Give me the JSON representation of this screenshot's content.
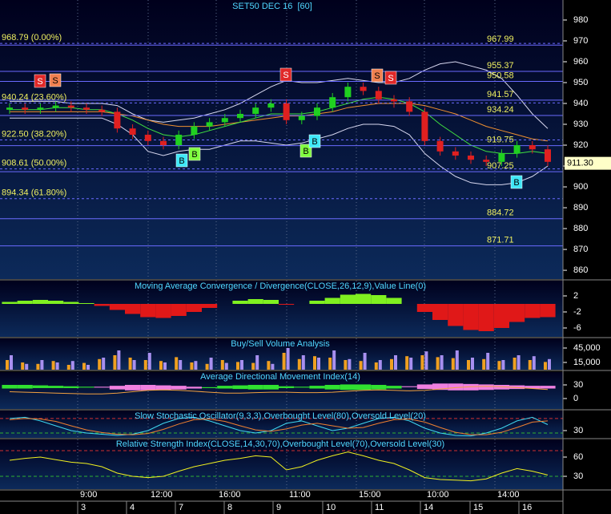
{
  "chart_data": [
    {
      "type": "candlestick",
      "title": "SET50 DEC 16  [60]",
      "open": [
        937,
        938,
        937,
        938,
        939,
        938,
        937,
        936,
        928,
        925,
        922,
        920,
        925,
        929,
        931,
        933,
        935,
        938,
        940,
        932,
        934,
        938,
        943,
        948,
        946,
        942,
        941,
        936,
        922,
        917,
        915,
        913,
        912,
        916,
        920,
        918
      ],
      "high": [
        940,
        940,
        940,
        941,
        941,
        940,
        939,
        938,
        930,
        927,
        924,
        927,
        931,
        933,
        935,
        937,
        940,
        942,
        942,
        936,
        940,
        945,
        950,
        950,
        948,
        944,
        943,
        938,
        924,
        919,
        917,
        915,
        918,
        922,
        922,
        920
      ],
      "low": [
        935,
        935,
        935,
        936,
        936,
        935,
        934,
        926,
        923,
        920,
        918,
        918,
        923,
        927,
        929,
        931,
        933,
        936,
        930,
        930,
        932,
        936,
        941,
        944,
        940,
        938,
        934,
        920,
        915,
        913,
        911,
        910,
        910,
        914,
        916,
        910
      ],
      "close": [
        938,
        937,
        938,
        939,
        938,
        937,
        936,
        928,
        925,
        922,
        920,
        925,
        929,
        931,
        933,
        935,
        938,
        940,
        932,
        934,
        938,
        943,
        948,
        946,
        942,
        941,
        936,
        922,
        917,
        915,
        913,
        912,
        916,
        920,
        918,
        912
      ],
      "up_color": "#20d020",
      "down_color": "#e02020",
      "overlays": [
        {
          "color": "#d8d8f0",
          "values": [
            941,
            941,
            941,
            941,
            940,
            940,
            940,
            939,
            935,
            932,
            931,
            932,
            933,
            935,
            937,
            940,
            944,
            948,
            951,
            950,
            950,
            951,
            952,
            951,
            950,
            950,
            952,
            956,
            959,
            960,
            958,
            956,
            952,
            944,
            935,
            928
          ]
        },
        {
          "color": "#d8d8f0",
          "values": [
            933,
            933,
            933,
            933,
            933,
            933,
            933,
            930,
            925,
            917,
            915,
            917,
            918,
            918,
            920,
            922,
            922,
            921,
            920,
            921,
            923,
            925,
            928,
            930,
            930,
            929,
            925,
            916,
            910,
            905,
            902,
            901,
            901,
            902,
            905,
            910
          ]
        },
        {
          "color": "#f09030",
          "values": [
            936,
            936,
            936,
            936,
            936,
            936,
            936,
            935,
            934,
            932,
            930,
            929,
            929,
            929,
            930,
            931,
            932,
            933,
            934,
            934,
            935,
            936,
            938,
            939,
            940,
            940,
            940,
            939,
            937,
            935,
            932,
            929,
            927,
            925,
            923,
            922
          ]
        },
        {
          "color": "#40e040",
          "values": [
            937,
            937,
            937,
            938,
            938,
            937,
            937,
            935,
            932,
            928,
            925,
            924,
            925,
            927,
            929,
            931,
            933,
            935,
            935,
            935,
            936,
            938,
            940,
            942,
            943,
            942,
            940,
            936,
            930,
            925,
            920,
            917,
            916,
            916,
            917,
            916
          ]
        }
      ],
      "ylim": [
        855.8,
        989.6
      ],
      "yticks": [
        860,
        870,
        880,
        890,
        900,
        910,
        920,
        930,
        940,
        950,
        960,
        970,
        980
      ],
      "levels": [
        967.99,
        955.37,
        950.58,
        941.57,
        934.24,
        919.75,
        907.25,
        884.72,
        871.71
      ],
      "level_color": "#6a6aff",
      "fib_levels": [
        {
          "value": 968.79,
          "label": "968.79 (0.00%)"
        },
        {
          "value": 940.24,
          "label": "940.24 (23.60%)"
        },
        {
          "value": 922.5,
          "label": "922.50 (38.20%)"
        },
        {
          "value": 908.61,
          "label": "908.61 (50.00%)"
        },
        {
          "value": 894.34,
          "label": "894.34 (61.80%)"
        }
      ],
      "last_price": {
        "value": 911.3,
        "label": "911.30"
      },
      "signals": [
        {
          "label": "S",
          "color": "#e02828"
        },
        {
          "label": "S",
          "color": "#f08050"
        },
        {
          "label": "S",
          "color": "#e02828"
        },
        {
          "label": "S",
          "color": "#f08050"
        },
        {
          "label": "S",
          "color": "#e02828"
        },
        {
          "label": "B",
          "color": "#40e8f8"
        },
        {
          "label": "B",
          "color": "#80ff40"
        },
        {
          "label": "B",
          "color": "#80ff40"
        },
        {
          "label": "B",
          "color": "#40e8f8"
        },
        {
          "label": "B",
          "color": "#40e8f8"
        }
      ]
    },
    {
      "type": "area",
      "title": "Moving Average Convergence / Divergence(CLOSE,26,12,9),Value Line(0)",
      "values": [
        0.5,
        0.8,
        1,
        0.8,
        0.5,
        0.2,
        -0.5,
        -1.5,
        -2.5,
        -3.3,
        -3.5,
        -3,
        -2,
        -1,
        0,
        0.8,
        1.2,
        1,
        -0.2,
        0,
        0.8,
        1.5,
        2.3,
        2.5,
        2.2,
        1.5,
        0,
        -2,
        -4,
        -5.5,
        -6.5,
        -6.8,
        -6,
        -4.5,
        -3.5,
        -3.3
      ],
      "up_color": "#80f020",
      "down_color": "#e01818",
      "ylim": [
        -8.2,
        5.8
      ],
      "yticks": [
        2,
        -2,
        -6
      ]
    },
    {
      "type": "bar",
      "title": "Buy/Sell Volume Analysis",
      "series": [
        {
          "color": "#f0a020",
          "values": [
            20000,
            15000,
            12000,
            18000,
            10000,
            14000,
            22000,
            30000,
            25000,
            20000,
            18000,
            26000,
            15000,
            12000,
            20000,
            16000,
            14000,
            18000,
            35000,
            22000,
            28000,
            25000,
            20000,
            18000,
            15000,
            22000,
            28000,
            30000,
            26000,
            24000,
            20000,
            22000,
            18000,
            25000,
            20000,
            16000
          ]
        },
        {
          "color": "#a890f0",
          "values": [
            30000,
            12000,
            20000,
            15000,
            18000,
            10000,
            25000,
            40000,
            20000,
            35000,
            15000,
            20000,
            18000,
            25000,
            14000,
            20000,
            30000,
            12000,
            45000,
            30000,
            25000,
            40000,
            22000,
            35000,
            20000,
            30000,
            25000,
            38000,
            30000,
            40000,
            25000,
            35000,
            20000,
            30000,
            28000,
            22000
          ]
        }
      ],
      "ylim": [
        0,
        65000
      ],
      "yticks": [
        {
          "value": 45000,
          "label": "45,000"
        },
        {
          "value": 15000,
          "label": "15,000"
        }
      ]
    },
    {
      "type": "band",
      "title": "Average Directional Movement Index(14)",
      "di_plus": [
        30,
        30,
        29,
        28,
        27,
        26,
        24,
        20,
        18,
        18,
        19,
        20,
        22,
        25,
        28,
        29,
        30,
        30,
        27,
        26,
        28,
        30,
        31,
        31,
        30,
        28,
        25,
        21,
        19,
        18,
        18,
        19,
        20,
        21,
        22,
        22
      ],
      "di_minus": [
        22,
        22,
        23,
        23,
        23,
        24,
        26,
        28,
        30,
        30,
        29,
        28,
        26,
        23,
        22,
        21,
        20,
        20,
        23,
        24,
        22,
        20,
        19,
        19,
        20,
        22,
        27,
        31,
        33,
        33,
        32,
        31,
        30,
        29,
        28,
        28
      ],
      "adx": [
        15,
        14,
        13,
        12,
        11,
        10,
        10,
        12,
        15,
        18,
        19,
        18,
        16,
        14,
        12,
        12,
        13,
        14,
        14,
        13,
        13,
        14,
        16,
        18,
        19,
        18,
        17,
        18,
        21,
        24,
        26,
        27,
        26,
        24,
        22,
        20
      ],
      "up_color": "#30e030",
      "down_color": "#f080e0",
      "adx_color": "#f0a040",
      "ylim": [
        -22.9,
        58.2
      ],
      "yticks": [
        30,
        0
      ]
    },
    {
      "type": "line",
      "title": "Slow Stochastic Oscillator(9,3,3),Overbought Level(80),Oversold Level(20)",
      "series": [
        {
          "color": "#40d8f0",
          "values": [
            80,
            85,
            70,
            50,
            30,
            20,
            15,
            10,
            15,
            30,
            60,
            80,
            85,
            70,
            50,
            30,
            20,
            30,
            60,
            70,
            50,
            30,
            40,
            60,
            80,
            85,
            70,
            40,
            20,
            10,
            8,
            20,
            40,
            70,
            85,
            55
          ]
        },
        {
          "color": "#f08030",
          "values": [
            75,
            80,
            78,
            68,
            50,
            33,
            22,
            15,
            13,
            18,
            35,
            57,
            75,
            78,
            68,
            50,
            33,
            27,
            37,
            53,
            60,
            50,
            40,
            43,
            60,
            75,
            78,
            65,
            43,
            23,
            13,
            13,
            23,
            43,
            65,
            70
          ]
        }
      ],
      "levels": [
        {
          "value": 80,
          "color": "#d03030"
        },
        {
          "value": 20,
          "color": "#30b030"
        }
      ],
      "ylim": [
        0,
        113
      ],
      "yticks": [
        30
      ]
    },
    {
      "type": "line",
      "title": "Relative Strength Index(CLOSE,14,30,70),Overbought Level(70),Oversold Level(30)",
      "series": [
        {
          "color": "#f0f020",
          "values": [
            55,
            58,
            60,
            56,
            52,
            50,
            45,
            35,
            30,
            28,
            30,
            38,
            45,
            50,
            55,
            58,
            62,
            60,
            40,
            45,
            55,
            62,
            68,
            62,
            55,
            50,
            40,
            28,
            25,
            24,
            23,
            26,
            35,
            42,
            38,
            32
          ]
        }
      ],
      "levels": [
        {
          "value": 70,
          "color": "#d03030"
        },
        {
          "value": 30,
          "color": "#30b030"
        }
      ],
      "ylim": [
        10,
        87.5
      ],
      "yticks": [
        60,
        30
      ]
    }
  ],
  "time_axis": {
    "times": [
      "9:00",
      "12:00",
      "16:00",
      "11:00",
      "15:00",
      "10:00",
      "14:00"
    ],
    "dates": [
      "3",
      "4",
      "7",
      "8",
      "9",
      "10",
      "11",
      "14",
      "15",
      "16"
    ]
  }
}
